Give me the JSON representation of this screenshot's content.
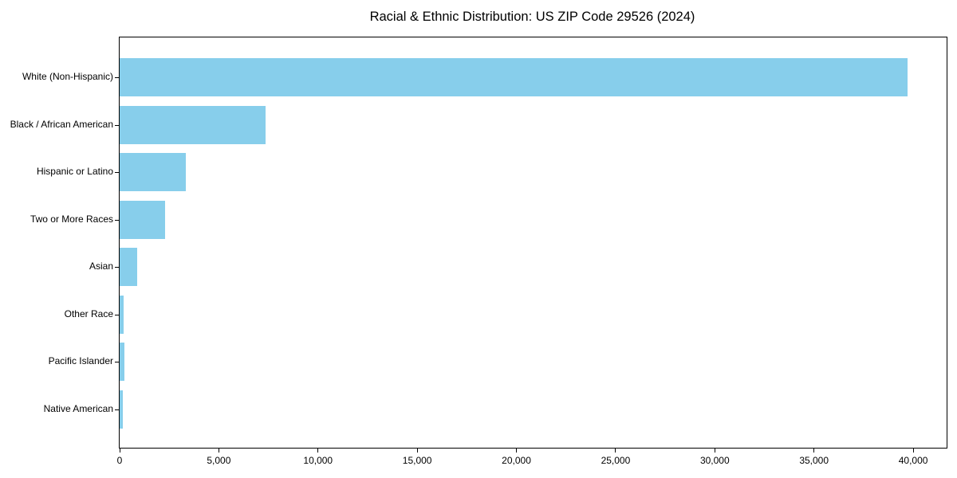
{
  "title": "Racial & Ethnic Distribution: US ZIP Code 29526 (2024)",
  "chart_data": {
    "type": "bar",
    "orientation": "horizontal",
    "title": "Racial & Ethnic Distribution: US ZIP Code 29526 (2024)",
    "categories": [
      "White (Non-Hispanic)",
      "Black / African American",
      "Hispanic or Latino",
      "Two or More Races",
      "Asian",
      "Other Race",
      "Pacific Islander",
      "Native American"
    ],
    "values": [
      39700,
      7350,
      3340,
      2290,
      880,
      220,
      230,
      150
    ],
    "xlabel": "",
    "ylabel": "",
    "xlim": [
      0,
      41685
    ],
    "x_ticks": [
      0,
      5000,
      10000,
      15000,
      20000,
      25000,
      30000,
      35000,
      40000
    ],
    "x_tick_labels": [
      "0",
      "5,000",
      "10,000",
      "15,000",
      "20,000",
      "25,000",
      "30,000",
      "35,000",
      "40,000"
    ],
    "bar_color": "#87CEEB",
    "axis_color": "#000000",
    "text_color": "#000000",
    "grid": false,
    "legend": "none",
    "background": "#ffffff"
  }
}
